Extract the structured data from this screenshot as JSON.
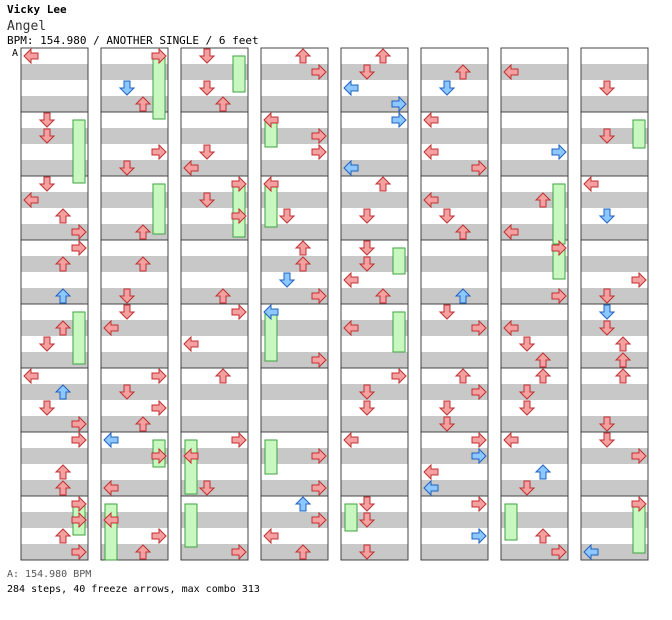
{
  "header": {
    "artist": "Vicky Lee",
    "title": "Angel",
    "info": "BPM: 154.980 / ANOTHER SINGLE / 6 feet",
    "marker": "A"
  },
  "footer": {
    "bpm_line": "A: 154.980 BPM",
    "stats_line": "284 steps, 40 freeze arrows, max combo 313"
  },
  "colors": {
    "tap_red": "#f4a0a0",
    "tap_red_stroke": "#c03030",
    "tap_blue": "#8cc8ff",
    "tap_blue_stroke": "#2060c0",
    "freeze_fill": "#c8f8c0",
    "freeze_stroke": "#40a040",
    "stripe": "#c8c8c8"
  },
  "chart_data": {
    "type": "step-chart",
    "lanes": [
      "left",
      "down",
      "up",
      "right"
    ],
    "columns": 8,
    "measures_per_column": 8,
    "steps": 284,
    "freeze_arrows": 40,
    "max_combo": 313
  }
}
